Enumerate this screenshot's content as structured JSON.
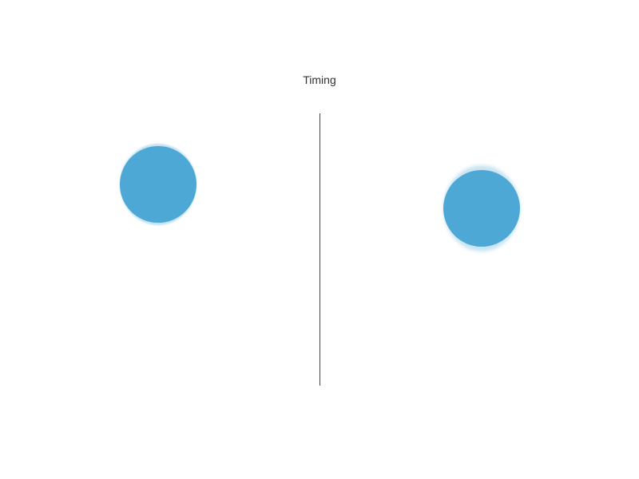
{
  "title": "Timing",
  "colors": {
    "ball": "#4ea8d6",
    "divider": "#444444",
    "title_text": "#333333",
    "background": "#ffffff"
  },
  "scene": {
    "left_ball": {
      "name": "left-ball",
      "motion_blur": "low"
    },
    "right_ball": {
      "name": "right-ball",
      "motion_blur": "high"
    }
  }
}
